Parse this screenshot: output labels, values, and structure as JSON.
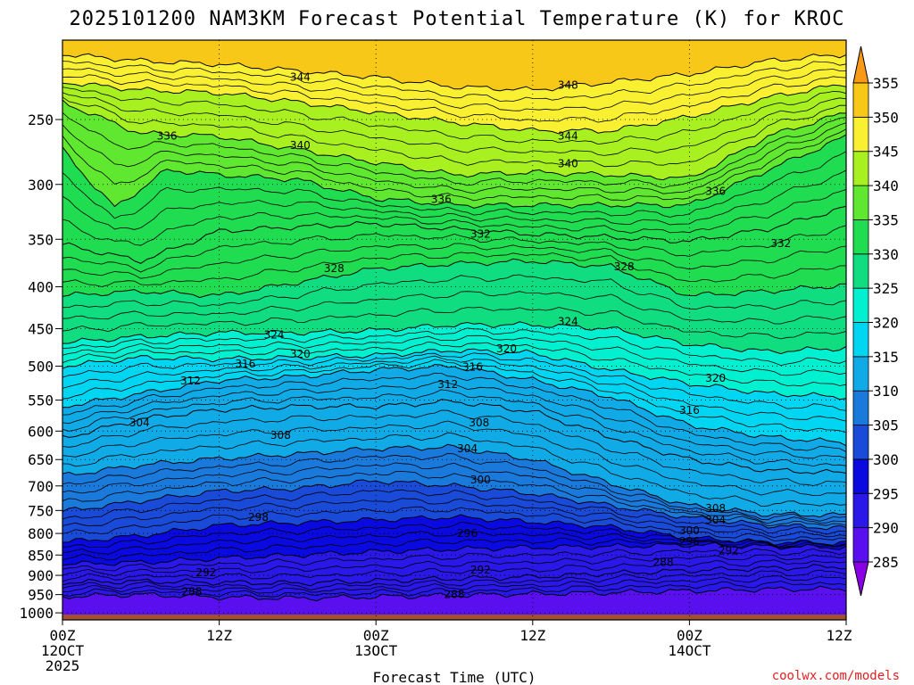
{
  "chart_data": {
    "type": "heatmap",
    "title": "2025101200 NAM3KM Forecast Potential Temperature (K) for KROC",
    "xlabel": "Forecast Time (UTC)",
    "ylabel": "",
    "x_ticks": [
      {
        "hour": 0,
        "line1": "00Z",
        "line2": "12OCT",
        "line3": "2025"
      },
      {
        "hour": 12,
        "line1": "12Z",
        "line2": "",
        "line3": ""
      },
      {
        "hour": 24,
        "line1": "00Z",
        "line2": "13OCT",
        "line3": ""
      },
      {
        "hour": 36,
        "line1": "12Z",
        "line2": "",
        "line3": ""
      },
      {
        "hour": 48,
        "line1": "00Z",
        "line2": "14OCT",
        "line3": ""
      },
      {
        "hour": 60,
        "line1": "12Z",
        "line2": "",
        "line3": ""
      }
    ],
    "x_range_hours": [
      0,
      60
    ],
    "y_axis_hpa": [
      1000,
      950,
      900,
      850,
      800,
      750,
      700,
      650,
      600,
      550,
      500,
      450,
      400,
      350,
      300,
      250
    ],
    "y_range_hpa": [
      1020,
      200
    ],
    "surface_pressure_hpa": 1005,
    "colorbar": {
      "levels": [
        285,
        290,
        295,
        300,
        305,
        310,
        315,
        320,
        325,
        330,
        335,
        340,
        345,
        350,
        355
      ],
      "colors": [
        "#8a00e6",
        "#5a10ee",
        "#2a18e8",
        "#0a0ae0",
        "#1a4ad8",
        "#1a7adc",
        "#10aae6",
        "#00d6f2",
        "#00f0d0",
        "#10dc80",
        "#20dc50",
        "#60e830",
        "#a8f020",
        "#f8f030",
        "#f8c818",
        "#f89a18"
      ]
    },
    "contour_interval_k": 4,
    "contours": [
      {
        "theta": 288,
        "p": [
          [
            0,
            955
          ],
          [
            6,
            950
          ],
          [
            12,
            957
          ],
          [
            18,
            960
          ],
          [
            24,
            956
          ],
          [
            30,
            952
          ],
          [
            36,
            948
          ],
          [
            42,
            945
          ],
          [
            48,
            940
          ],
          [
            54,
            936
          ],
          [
            60,
            935
          ]
        ]
      },
      {
        "theta": 292,
        "p": [
          [
            0,
            918
          ],
          [
            6,
            915
          ],
          [
            12,
            918
          ],
          [
            18,
            920
          ],
          [
            24,
            914
          ],
          [
            30,
            908
          ],
          [
            36,
            904
          ],
          [
            42,
            895
          ],
          [
            48,
            888
          ],
          [
            54,
            882
          ],
          [
            60,
            878
          ]
        ]
      },
      {
        "theta": 296,
        "p": [
          [
            0,
            872
          ],
          [
            6,
            868
          ],
          [
            12,
            858
          ],
          [
            18,
            850
          ],
          [
            24,
            842
          ],
          [
            30,
            836
          ],
          [
            36,
            832
          ],
          [
            42,
            830
          ],
          [
            48,
            826
          ],
          [
            54,
            830
          ],
          [
            60,
            832
          ]
        ]
      },
      {
        "theta": 300,
        "p": [
          [
            0,
            820
          ],
          [
            6,
            805
          ],
          [
            12,
            782
          ],
          [
            18,
            776
          ],
          [
            24,
            770
          ],
          [
            30,
            764
          ],
          [
            36,
            774
          ],
          [
            42,
            786
          ],
          [
            48,
            810
          ],
          [
            54,
            820
          ],
          [
            60,
            822
          ]
        ]
      },
      {
        "theta": 304,
        "p": [
          [
            0,
            752
          ],
          [
            6,
            730
          ],
          [
            12,
            710
          ],
          [
            18,
            705
          ],
          [
            24,
            690
          ],
          [
            30,
            700
          ],
          [
            36,
            715
          ],
          [
            42,
            740
          ],
          [
            48,
            765
          ],
          [
            54,
            782
          ],
          [
            60,
            788
          ]
        ]
      },
      {
        "theta": 308,
        "p": [
          [
            0,
            680
          ],
          [
            6,
            660
          ],
          [
            12,
            648
          ],
          [
            18,
            640
          ],
          [
            24,
            630
          ],
          [
            30,
            628
          ],
          [
            36,
            650
          ],
          [
            42,
            695
          ],
          [
            48,
            740
          ],
          [
            54,
            758
          ],
          [
            60,
            760
          ]
        ]
      },
      {
        "theta": 312,
        "p": [
          [
            0,
            612
          ],
          [
            6,
            580
          ],
          [
            12,
            565
          ],
          [
            18,
            560
          ],
          [
            24,
            560
          ],
          [
            30,
            552
          ],
          [
            36,
            568
          ],
          [
            42,
            610
          ],
          [
            48,
            650
          ],
          [
            54,
            670
          ],
          [
            60,
            675
          ]
        ]
      },
      {
        "theta": 316,
        "p": [
          [
            0,
            560
          ],
          [
            6,
            540
          ],
          [
            12,
            520
          ],
          [
            18,
            515
          ],
          [
            24,
            505
          ],
          [
            30,
            500
          ],
          [
            36,
            520
          ],
          [
            42,
            545
          ],
          [
            48,
            590
          ],
          [
            54,
            610
          ],
          [
            60,
            620
          ]
        ]
      },
      {
        "theta": 320,
        "p": [
          [
            0,
            500
          ],
          [
            6,
            488
          ],
          [
            12,
            490
          ],
          [
            18,
            488
          ],
          [
            24,
            485
          ],
          [
            30,
            478
          ],
          [
            36,
            482
          ],
          [
            42,
            505
          ],
          [
            48,
            525
          ],
          [
            54,
            540
          ],
          [
            60,
            545
          ]
        ]
      },
      {
        "theta": 324,
        "p": [
          [
            0,
            468
          ],
          [
            6,
            460
          ],
          [
            12,
            455
          ],
          [
            18,
            455
          ],
          [
            24,
            452
          ],
          [
            30,
            445
          ],
          [
            36,
            445
          ],
          [
            42,
            450
          ],
          [
            48,
            470
          ],
          [
            54,
            480
          ],
          [
            60,
            475
          ]
        ]
      },
      {
        "theta": 328,
        "p": [
          [
            0,
            410
          ],
          [
            6,
            405
          ],
          [
            12,
            410
          ],
          [
            18,
            395
          ],
          [
            24,
            380
          ],
          [
            30,
            375
          ],
          [
            36,
            372
          ],
          [
            42,
            378
          ],
          [
            48,
            410
          ],
          [
            54,
            405
          ],
          [
            60,
            398
          ]
        ]
      },
      {
        "theta": 332,
        "p": [
          [
            0,
            355
          ],
          [
            6,
            372
          ],
          [
            12,
            342
          ],
          [
            18,
            338
          ],
          [
            24,
            335
          ],
          [
            30,
            340
          ],
          [
            36,
            345
          ],
          [
            42,
            348
          ],
          [
            48,
            352
          ],
          [
            54,
            340
          ],
          [
            60,
            320
          ]
        ]
      },
      {
        "theta": 336,
        "p": [
          [
            0,
            272
          ],
          [
            4,
            320
          ],
          [
            8,
            288
          ],
          [
            12,
            292
          ],
          [
            18,
            296
          ],
          [
            24,
            312
          ],
          [
            30,
            318
          ],
          [
            36,
            318
          ],
          [
            42,
            318
          ],
          [
            48,
            318
          ],
          [
            54,
            288
          ],
          [
            60,
            262
          ]
        ]
      },
      {
        "theta": 340,
        "p": [
          [
            0,
            238
          ],
          [
            6,
            260
          ],
          [
            12,
            262
          ],
          [
            18,
            272
          ],
          [
            24,
            282
          ],
          [
            30,
            292
          ],
          [
            36,
            290
          ],
          [
            42,
            292
          ],
          [
            48,
            295
          ],
          [
            54,
            262
          ],
          [
            60,
            245
          ]
        ]
      },
      {
        "theta": 344,
        "p": [
          [
            0,
            225
          ],
          [
            6,
            230
          ],
          [
            12,
            232
          ],
          [
            18,
            238
          ],
          [
            24,
            245
          ],
          [
            30,
            252
          ],
          [
            36,
            258
          ],
          [
            42,
            258
          ],
          [
            48,
            248
          ],
          [
            54,
            235
          ],
          [
            60,
            226
          ]
        ]
      },
      {
        "theta": 348,
        "p": [
          [
            0,
            208
          ],
          [
            6,
            212
          ],
          [
            12,
            214
          ],
          [
            18,
            218
          ],
          [
            24,
            222
          ],
          [
            30,
            228
          ],
          [
            36,
            230
          ],
          [
            42,
            225
          ],
          [
            48,
            220
          ],
          [
            54,
            212
          ],
          [
            60,
            208
          ]
        ]
      }
    ],
    "contour_labels": [
      {
        "text": "344",
        "hour": 18.2,
        "hpa": 222
      },
      {
        "text": "348",
        "hour": 38.7,
        "hpa": 227
      },
      {
        "text": "336",
        "hour": 8.0,
        "hpa": 262
      },
      {
        "text": "340",
        "hour": 18.2,
        "hpa": 269
      },
      {
        "text": "344",
        "hour": 38.7,
        "hpa": 262
      },
      {
        "text": "340",
        "hour": 38.7,
        "hpa": 283
      },
      {
        "text": "336",
        "hour": 29.0,
        "hpa": 313
      },
      {
        "text": "336",
        "hour": 50.0,
        "hpa": 306
      },
      {
        "text": "332",
        "hour": 32.0,
        "hpa": 345
      },
      {
        "text": "332",
        "hour": 55.0,
        "hpa": 354
      },
      {
        "text": "328",
        "hour": 20.8,
        "hpa": 380
      },
      {
        "text": "328",
        "hour": 43.0,
        "hpa": 378
      },
      {
        "text": "324",
        "hour": 16.2,
        "hpa": 458
      },
      {
        "text": "324",
        "hour": 38.7,
        "hpa": 441
      },
      {
        "text": "320",
        "hour": 18.2,
        "hpa": 483
      },
      {
        "text": "320",
        "hour": 34.0,
        "hpa": 476
      },
      {
        "text": "316",
        "hour": 14.0,
        "hpa": 497
      },
      {
        "text": "316",
        "hour": 31.4,
        "hpa": 501
      },
      {
        "text": "320",
        "hour": 50.0,
        "hpa": 517
      },
      {
        "text": "312",
        "hour": 9.8,
        "hpa": 521
      },
      {
        "text": "312",
        "hour": 29.5,
        "hpa": 526
      },
      {
        "text": "316",
        "hour": 48.0,
        "hpa": 566
      },
      {
        "text": "304",
        "hour": 5.9,
        "hpa": 586
      },
      {
        "text": "308",
        "hour": 16.7,
        "hpa": 607
      },
      {
        "text": "308",
        "hour": 31.9,
        "hpa": 586
      },
      {
        "text": "304",
        "hour": 31.0,
        "hpa": 630
      },
      {
        "text": "300",
        "hour": 32.0,
        "hpa": 688
      },
      {
        "text": "308",
        "hour": 50.0,
        "hpa": 746
      },
      {
        "text": "304",
        "hour": 50.0,
        "hpa": 770
      },
      {
        "text": "298",
        "hour": 15.0,
        "hpa": 765
      },
      {
        "text": "300",
        "hour": 48.0,
        "hpa": 794
      },
      {
        "text": "296",
        "hour": 31.0,
        "hpa": 800
      },
      {
        "text": "296",
        "hour": 48.0,
        "hpa": 818
      },
      {
        "text": "292",
        "hour": 51.0,
        "hpa": 840
      },
      {
        "text": "288",
        "hour": 46.0,
        "hpa": 868
      },
      {
        "text": "292",
        "hour": 11.0,
        "hpa": 893
      },
      {
        "text": "292",
        "hour": 32.0,
        "hpa": 886
      },
      {
        "text": "288",
        "hour": 9.9,
        "hpa": 942
      },
      {
        "text": "288",
        "hour": 30.0,
        "hpa": 950
      }
    ],
    "grid": true
  },
  "watermark": "coolwx.com/models",
  "ground_color": "#a0522d"
}
